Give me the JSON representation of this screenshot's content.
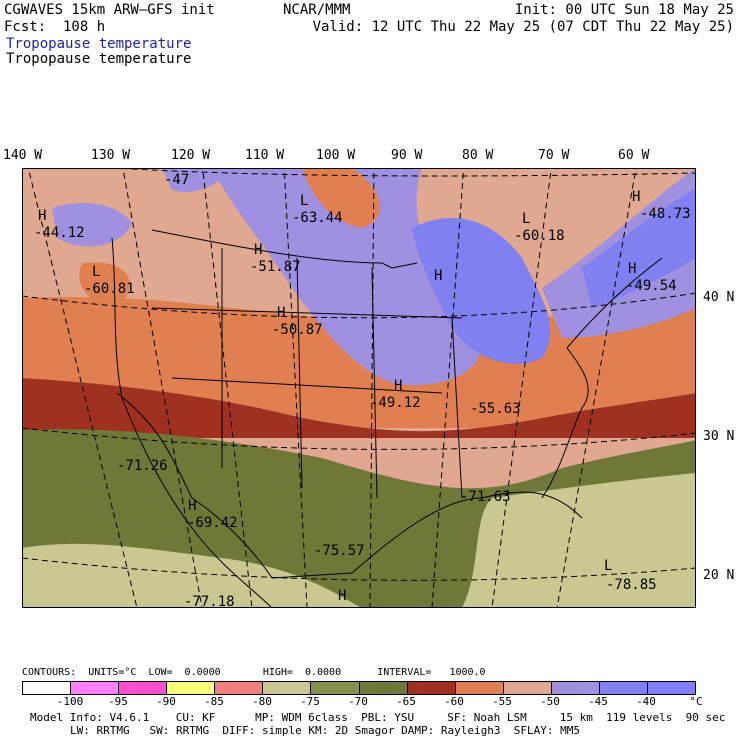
{
  "header": {
    "model": "CGWAVES 15km ARW–GFS init",
    "fcst": "Fcst:  108 h",
    "org": "NCAR/MMM",
    "init": "Init: 00 UTC Sun 18 May 25",
    "valid": "Valid: 12 UTC Thu 22 May 25 (07 CDT Thu 22 May 25)",
    "field_blue": "Tropopause temperature",
    "field_black": "Tropopause temperature"
  },
  "longitude_labels": [
    "140 W",
    "130 W",
    "120 W",
    "110 W",
    "100 W",
    "90 W",
    "80 W",
    "70 W",
    "60 W"
  ],
  "latitude_labels": [
    "40 N",
    "30 N",
    "20 N"
  ],
  "map_labels": [
    {
      "kind": "H",
      "value": "-44.12"
    },
    {
      "kind": "",
      "value": "-47"
    },
    {
      "kind": "L",
      "value": "-63.44"
    },
    {
      "kind": "H",
      "value": "-51.87"
    },
    {
      "kind": "L",
      "value": "-60.81"
    },
    {
      "kind": "H",
      "value": "-50.87"
    },
    {
      "kind": "L",
      "value": "-60.18"
    },
    {
      "kind": "H",
      "value": "-48.73"
    },
    {
      "kind": "H",
      "value": "-49.54"
    },
    {
      "kind": "H",
      "value": ""
    },
    {
      "kind": "H",
      "value": "-49.12"
    },
    {
      "kind": "",
      "value": "-55.63"
    },
    {
      "kind": "",
      "value": "-71.26"
    },
    {
      "kind": "H",
      "value": "-69.42"
    },
    {
      "kind": "",
      "value": "-71.63"
    },
    {
      "kind": "",
      "value": "-75.57"
    },
    {
      "kind": "H",
      "value": ""
    },
    {
      "kind": "L",
      "value": "-78.85"
    },
    {
      "kind": "",
      "value": "-77.18"
    }
  ],
  "contours": {
    "text": "CONTOURS:  UNITS=°C  LOW=  0.0000       HIGH=  0.0000      INTERVAL=   1000.0"
  },
  "colorbar": {
    "colors": [
      "#ffffff",
      "#ff80ff",
      "#ff50d0",
      "#ffff80",
      "#f08080",
      "#c8c890",
      "#88904a",
      "#707838",
      "#a03020",
      "#e08050",
      "#e0a890",
      "#a090e0",
      "#8080f0",
      "#8080ff"
    ],
    "labels": [
      "-100",
      "-95",
      "-90",
      "-85",
      "-80",
      "-75",
      "-70",
      "-65",
      "-60",
      "-55",
      "-50",
      "-45",
      "-40",
      "°C"
    ]
  },
  "footer": {
    "line1": "Model Info: V4.6.1    CU: KF      MP: WDM 6class  PBL: YSU     SF: Noah LSM     15 km  119 levels  90 sec",
    "line2": "LW: RRTMG   SW: RRTMG  DIFF: simple KM: 2D Smagor DAMP: Rayleigh3  SFLAY: MM5"
  }
}
